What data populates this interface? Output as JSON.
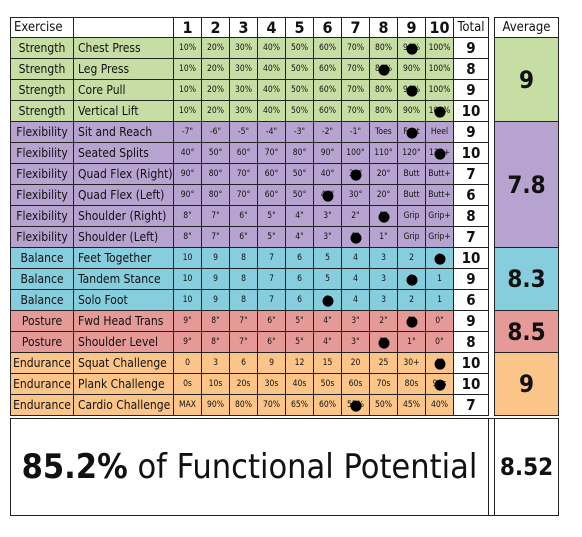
{
  "header": {
    "exercise": "Exercise",
    "levels": [
      "1",
      "2",
      "3",
      "4",
      "5",
      "6",
      "7",
      "8",
      "9",
      "10"
    ],
    "total": "Total",
    "average": "Average"
  },
  "colors": {
    "strength": "#c6dea4",
    "flexibility": "#b7a3cf",
    "balance": "#86cddd",
    "posture": "#e59a97",
    "endurance": "#fbc589"
  },
  "groups": [
    {
      "key": "strength",
      "average": "9",
      "rows": [
        {
          "category": "Strength",
          "name": "Chest Press",
          "values": [
            "10%",
            "20%",
            "30%",
            "40%",
            "50%",
            "60%",
            "70%",
            "80%",
            "90%",
            "100%"
          ],
          "marker": 9,
          "total": "9"
        },
        {
          "category": "Strength",
          "name": "Leg Press",
          "values": [
            "10%",
            "20%",
            "30%",
            "40%",
            "50%",
            "60%",
            "70%",
            "80%",
            "90%",
            "100%"
          ],
          "marker": 8,
          "total": "8"
        },
        {
          "category": "Strength",
          "name": "Core Pull",
          "values": [
            "10%",
            "20%",
            "30%",
            "40%",
            "50%",
            "60%",
            "70%",
            "80%",
            "90%",
            "100%"
          ],
          "marker": 9,
          "total": "9"
        },
        {
          "category": "Strength",
          "name": "Vertical Lift",
          "values": [
            "10%",
            "20%",
            "30%",
            "40%",
            "50%",
            "60%",
            "70%",
            "80%",
            "90%",
            "100%"
          ],
          "marker": 10,
          "total": "10"
        }
      ]
    },
    {
      "key": "flexibility",
      "average": "7.8",
      "rows": [
        {
          "category": "Flexibility",
          "name": "Sit and Reach",
          "values": [
            "-7\"",
            "-6\"",
            "-5\"",
            "-4\"",
            "-3\"",
            "-2\"",
            "-1\"",
            "Toes",
            "Foot",
            "Heel"
          ],
          "marker": 9,
          "total": "9"
        },
        {
          "category": "Flexibility",
          "name": "Seated Splits",
          "values": [
            "40°",
            "50°",
            "60°",
            "70°",
            "80°",
            "90°",
            "100°",
            "110°",
            "120°",
            "120+"
          ],
          "marker": 10,
          "total": "10"
        },
        {
          "category": "Flexibility",
          "name": "Quad Flex (Right)",
          "values": [
            "90°",
            "80°",
            "70°",
            "60°",
            "50°",
            "40°",
            "30°",
            "20°",
            "Butt",
            "Butt+"
          ],
          "marker": 7,
          "total": "7"
        },
        {
          "category": "Flexibility",
          "name": "Quad Flex (Left)",
          "values": [
            "90°",
            "80°",
            "70°",
            "60°",
            "50°",
            "40°",
            "30°",
            "20°",
            "Butt",
            "Butt+"
          ],
          "marker": 6,
          "total": "6"
        },
        {
          "category": "Flexibility",
          "name": "Shoulder (Right)",
          "values": [
            "8\"",
            "7\"",
            "6\"",
            "5\"",
            "4\"",
            "3\"",
            "2\"",
            "1\"",
            "Grip",
            "Grip+"
          ],
          "marker": 8,
          "total": "8"
        },
        {
          "category": "Flexibility",
          "name": "Shoulder (Left)",
          "values": [
            "8\"",
            "7\"",
            "6\"",
            "5\"",
            "4\"",
            "3\"",
            "2\"",
            "1\"",
            "Grip",
            "Grip+"
          ],
          "marker": 7,
          "total": "7"
        }
      ]
    },
    {
      "key": "balance",
      "average": "8.3",
      "rows": [
        {
          "category": "Balance",
          "name": "Feet Together",
          "values": [
            "10",
            "9",
            "8",
            "7",
            "6",
            "5",
            "4",
            "3",
            "2",
            "1"
          ],
          "marker": 10,
          "total": "10"
        },
        {
          "category": "Balance",
          "name": "Tandem Stance",
          "values": [
            "10",
            "9",
            "8",
            "7",
            "6",
            "5",
            "4",
            "3",
            "2",
            "1"
          ],
          "marker": 9,
          "total": "9"
        },
        {
          "category": "Balance",
          "name": "Solo Foot",
          "values": [
            "10",
            "9",
            "8",
            "7",
            "6",
            "5",
            "4",
            "3",
            "2",
            "1"
          ],
          "marker": 6,
          "total": "6"
        }
      ]
    },
    {
      "key": "posture",
      "average": "8.5",
      "rows": [
        {
          "category": "Posture",
          "name": "Fwd Head Trans",
          "values": [
            "9\"",
            "8\"",
            "7\"",
            "6\"",
            "5\"",
            "4\"",
            "3\"",
            "2\"",
            "1\"",
            "0\""
          ],
          "marker": 9,
          "total": "9"
        },
        {
          "category": "Posture",
          "name": "Shoulder Level",
          "values": [
            "9°",
            "8°",
            "7°",
            "6°",
            "5°",
            "4°",
            "3°",
            "2°",
            "1°",
            "0°"
          ],
          "marker": 8,
          "total": "8"
        }
      ]
    },
    {
      "key": "endurance",
      "average": "9",
      "rows": [
        {
          "category": "Endurance",
          "name": "Squat Challenge",
          "values": [
            "0",
            "3",
            "6",
            "9",
            "12",
            "15",
            "20",
            "25",
            "30+",
            "40"
          ],
          "marker": 10,
          "total": "10"
        },
        {
          "category": "Endurance",
          "name": "Plank Challenge",
          "values": [
            "0s",
            "10s",
            "20s",
            "30s",
            "40s",
            "50s",
            "60s",
            "70s",
            "80s",
            "90s"
          ],
          "marker": 10,
          "total": "10"
        },
        {
          "category": "Endurance",
          "name": "Cardio Challenge",
          "values": [
            "MAX",
            "90%",
            "80%",
            "70%",
            "65%",
            "60%",
            "55%",
            "50%",
            "45%",
            "40%"
          ],
          "marker": 7,
          "total": "7"
        }
      ]
    }
  ],
  "footer": {
    "percent": "85.2%",
    "text": " of Functional Potential",
    "score": "8.52"
  }
}
